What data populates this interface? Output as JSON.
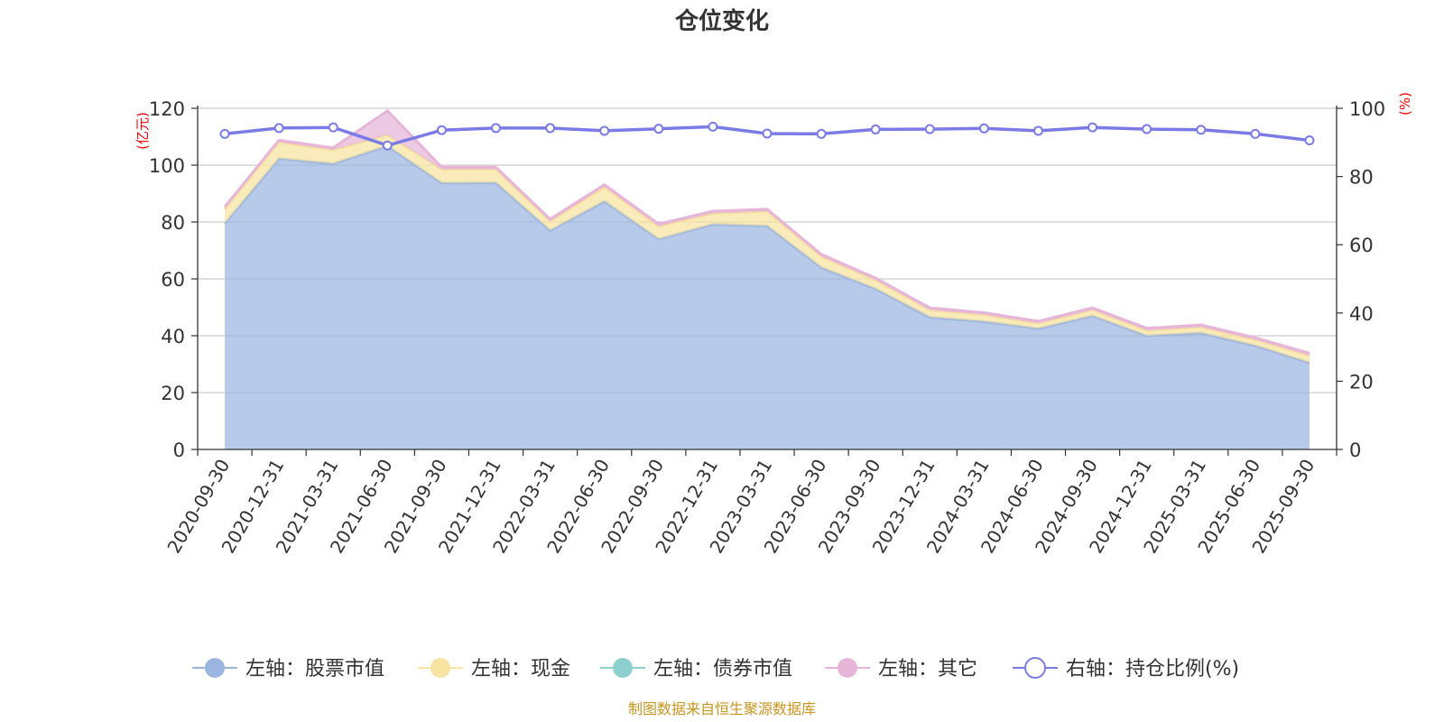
{
  "chart_data": {
    "type": "area",
    "title": "仓位变化",
    "left_axis_unit": "(亿元)",
    "right_axis_unit": "(%)",
    "x": [
      "2020-09-30",
      "2020-12-31",
      "2021-03-31",
      "2021-06-30",
      "2021-09-30",
      "2021-12-31",
      "2022-03-31",
      "2022-06-30",
      "2022-09-30",
      "2022-12-31",
      "2023-03-31",
      "2023-06-30",
      "2023-09-30",
      "2023-12-31",
      "2024-03-31",
      "2024-06-30",
      "2024-09-30",
      "2024-12-31",
      "2025-03-31",
      "2025-06-30",
      "2025-09-30"
    ],
    "ylim_left": [
      0,
      120
    ],
    "yticks_left": [
      0,
      20,
      40,
      60,
      80,
      100,
      120
    ],
    "ylim_right": [
      0,
      100
    ],
    "yticks_right": [
      0,
      20,
      40,
      60,
      80,
      100
    ],
    "grid": true,
    "legend_position": "bottom",
    "series": [
      {
        "name": "左轴：股票市值",
        "axis": "left",
        "stack": true,
        "color": "#9bb5e0",
        "values": [
          79.5,
          102.3,
          100.5,
          106.8,
          93.7,
          93.8,
          77.0,
          87.3,
          74.0,
          79.2,
          78.6,
          64.0,
          56.5,
          46.5,
          45.0,
          42.5,
          47.0,
          40.0,
          41.0,
          36.5,
          30.5
        ]
      },
      {
        "name": "左轴：现金",
        "axis": "left",
        "stack": true,
        "color": "#f7e3a0",
        "values": [
          5.0,
          5.7,
          4.8,
          3.8,
          4.8,
          4.7,
          3.2,
          5.0,
          4.5,
          3.8,
          5.1,
          3.8,
          3.0,
          2.5,
          2.3,
          1.8,
          2.0,
          1.8,
          2.0,
          2.0,
          2.5
        ]
      },
      {
        "name": "左轴：债券市值",
        "axis": "left",
        "stack": true,
        "color": "#8ed0d0",
        "values": [
          0,
          0,
          0,
          0,
          0,
          0,
          0,
          0,
          0,
          0,
          0,
          0,
          0,
          0,
          0,
          0,
          0,
          0,
          0,
          0,
          0
        ]
      },
      {
        "name": "左轴：其它",
        "axis": "left",
        "stack": true,
        "color": "#e6b5d8",
        "values": [
          0.8,
          0.8,
          0.8,
          8.5,
          0.8,
          0.8,
          0.8,
          0.8,
          0.8,
          0.8,
          0.8,
          0.8,
          0.8,
          0.8,
          0.8,
          0.8,
          0.8,
          0.8,
          0.8,
          0.8,
          0.8
        ]
      },
      {
        "name": "右轴：持仓比例(%)",
        "axis": "right",
        "type": "line",
        "color": "#7b7be8",
        "values": [
          92.5,
          94.2,
          94.4,
          89.1,
          93.6,
          94.2,
          94.2,
          93.4,
          94.0,
          94.6,
          92.6,
          92.5,
          93.8,
          93.9,
          94.1,
          93.4,
          94.4,
          93.9,
          93.7,
          92.5,
          90.6
        ]
      }
    ],
    "source_note": "制图数据来自恒生聚源数据库"
  }
}
